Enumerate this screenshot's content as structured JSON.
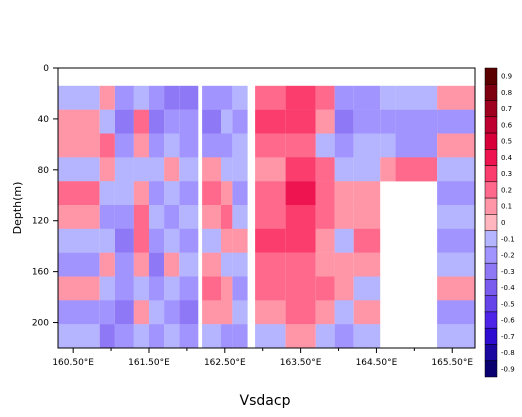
{
  "chart_data": {
    "type": "heatmap",
    "title": "",
    "xlabel": "Vsdacp",
    "ylabel": "Depth(m)",
    "x_axis": {
      "range_lon_e": [
        160.3,
        165.8
      ],
      "ticks": [
        160.5,
        161.0,
        161.5,
        162.0,
        162.5,
        163.0,
        163.5,
        164.0,
        164.5,
        165.0,
        165.5
      ],
      "tick_labels": [
        "160.50°E",
        "",
        "161.50°E",
        "",
        "162.50°E",
        "",
        "163.50°E",
        "",
        "164.50°E",
        "",
        "165.50°E"
      ]
    },
    "y_axis": {
      "range_m": [
        0,
        220
      ],
      "inverted": true,
      "ticks": [
        0,
        40,
        80,
        120,
        160,
        200
      ],
      "tick_labels": [
        "0",
        "40",
        "80",
        "120",
        "160",
        "200"
      ]
    },
    "colorbar": {
      "levels": [
        0.9,
        0.8,
        0.7,
        0.6,
        0.5,
        0.4,
        0.3,
        0.2,
        0.1,
        0,
        -0.1,
        -0.2,
        -0.3,
        -0.4,
        -0.5,
        -0.6,
        -0.7,
        -0.8,
        -0.9
      ],
      "labels": [
        "0.9",
        "0.8",
        "0.7",
        "0.6",
        "0.5",
        "0.4",
        "0.3",
        "0.2",
        "0.1",
        "0",
        "-0.1",
        "-0.2",
        "-0.3",
        "-0.4",
        "-0.5",
        "-0.6",
        "-0.7",
        "-0.8",
        "-0.9"
      ],
      "colors": [
        "#5a0000",
        "#7c0010",
        "#9e0020",
        "#be0030",
        "#d80038",
        "#ee1450",
        "#fa3d6c",
        "#ff6a8c",
        "#ff96a8",
        "#ffb6be",
        "#b4b4ff",
        "#a294ff",
        "#8f78f5",
        "#7a5cee",
        "#6544ea",
        "#4d24e8",
        "#2e0cd0",
        "#1a08a0",
        "#0a0070"
      ]
    },
    "valid_data_depth_m": [
      14,
      220
    ],
    "sections": [
      {
        "x_range": [
          160.3,
          160.85
        ],
        "values": [
          -0.1,
          0.1,
          0.1,
          -0.1,
          0.2,
          0.1,
          -0.1,
          -0.2,
          0.1,
          -0.2,
          -0.1
        ]
      },
      {
        "x_range": [
          160.85,
          161.05
        ],
        "values": [
          0.1,
          -0.1,
          0.2,
          0.1,
          -0.1,
          -0.2,
          -0.1,
          0.1,
          -0.1,
          -0.2,
          -0.3
        ]
      },
      {
        "x_range": [
          161.05,
          161.3
        ],
        "values": [
          -0.2,
          -0.3,
          -0.2,
          -0.1,
          -0.1,
          -0.2,
          -0.3,
          -0.2,
          -0.2,
          -0.3,
          -0.2
        ]
      },
      {
        "x_range": [
          161.3,
          161.5
        ],
        "values": [
          -0.1,
          0.2,
          0.1,
          -0.1,
          0.1,
          0.2,
          0.2,
          0.1,
          -0.1,
          0.1,
          -0.1
        ]
      },
      {
        "x_range": [
          161.5,
          161.7
        ],
        "values": [
          -0.2,
          -0.3,
          -0.2,
          -0.1,
          -0.2,
          -0.1,
          -0.2,
          -0.3,
          -0.2,
          -0.1,
          -0.2
        ]
      },
      {
        "x_range": [
          161.7,
          161.9
        ],
        "values": [
          -0.3,
          -0.2,
          -0.1,
          0.1,
          -0.1,
          -0.2,
          -0.1,
          0.1,
          -0.1,
          -0.2,
          -0.1
        ]
      },
      {
        "x_range": [
          161.9,
          162.15
        ],
        "values": [
          -0.3,
          -0.2,
          -0.2,
          -0.1,
          -0.2,
          -0.1,
          -0.2,
          -0.1,
          -0.2,
          -0.3,
          -0.2
        ]
      },
      {
        "x_range": [
          162.2,
          162.45
        ],
        "values": [
          -0.2,
          -0.3,
          -0.2,
          0.1,
          0.2,
          0.1,
          -0.1,
          0.1,
          0.2,
          0.1,
          -0.1
        ]
      },
      {
        "x_range": [
          162.45,
          162.6
        ],
        "values": [
          -0.2,
          -0.1,
          -0.2,
          -0.1,
          0.1,
          0.2,
          0.1,
          -0.1,
          0.1,
          0.1,
          -0.2
        ]
      },
      {
        "x_range": [
          162.6,
          162.8
        ],
        "values": [
          -0.1,
          -0.2,
          -0.1,
          -0.1,
          -0.2,
          -0.1,
          0.1,
          -0.1,
          -0.2,
          -0.1,
          -0.2
        ]
      },
      {
        "x_range": [
          162.9,
          163.3
        ],
        "values": [
          0.2,
          0.3,
          0.2,
          0.1,
          0.2,
          0.2,
          0.3,
          0.2,
          0.2,
          0.1,
          -0.1
        ]
      },
      {
        "x_range": [
          163.3,
          163.7
        ],
        "values": [
          0.3,
          0.3,
          0.2,
          0.3,
          0.4,
          0.3,
          0.3,
          0.2,
          0.2,
          0.2,
          0.1
        ]
      },
      {
        "x_range": [
          163.7,
          163.95
        ],
        "values": [
          0.2,
          0.1,
          -0.1,
          0.2,
          0.2,
          0.2,
          0.1,
          0.1,
          0.2,
          0.1,
          -0.1
        ]
      },
      {
        "x_range": [
          163.95,
          164.2
        ],
        "values": [
          -0.2,
          -0.3,
          -0.2,
          -0.1,
          0.1,
          0.1,
          -0.1,
          0.1,
          0.1,
          -0.1,
          -0.2
        ]
      },
      {
        "x_range": [
          164.2,
          164.55
        ],
        "values": [
          -0.2,
          -0.2,
          -0.1,
          -0.1,
          0.1,
          0.1,
          0.2,
          0.1,
          -0.1,
          0.1,
          -0.1
        ]
      },
      {
        "x_range": [
          164.55,
          164.75
        ],
        "values": [
          -0.1,
          -0.2,
          -0.1,
          0.1,
          null,
          null,
          null,
          null,
          null,
          null,
          null
        ]
      },
      {
        "x_range": [
          164.75,
          165.3
        ],
        "values": [
          -0.1,
          -0.2,
          -0.2,
          0.2,
          null,
          null,
          null,
          null,
          null,
          null,
          null
        ]
      },
      {
        "x_range": [
          165.3,
          165.8
        ],
        "values": [
          0.1,
          -0.2,
          0.1,
          -0.1,
          -0.2,
          -0.1,
          -0.2,
          -0.1,
          0.1,
          -0.2,
          -0.1
        ]
      }
    ]
  }
}
